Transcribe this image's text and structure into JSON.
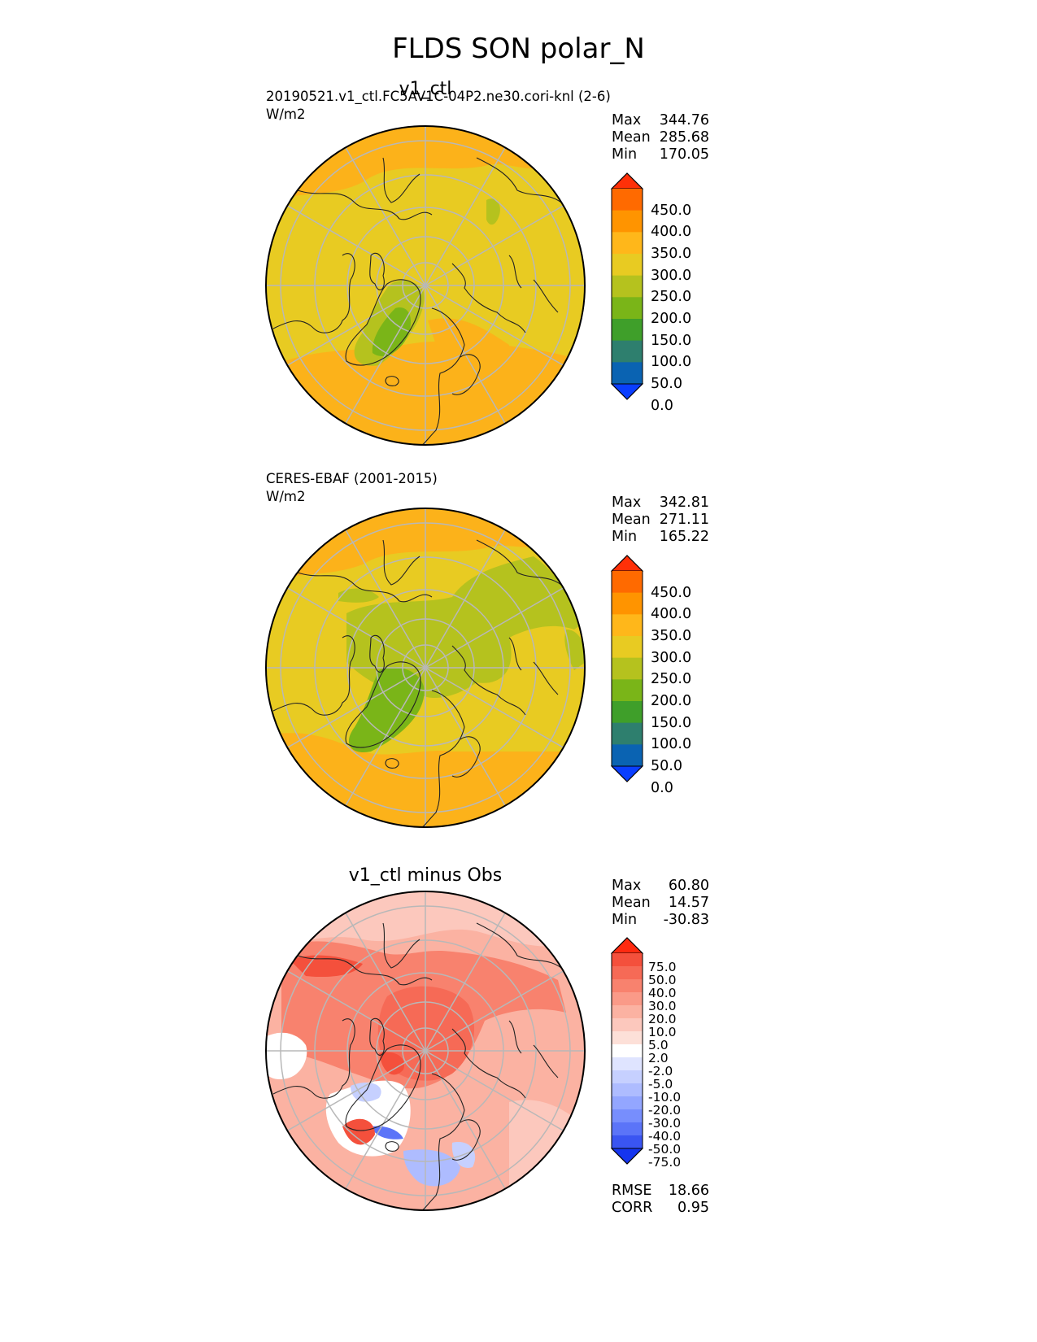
{
  "figure_title": "FLDS SON polar_N",
  "panels": [
    {
      "title": "v1_ctl",
      "label": "20190521.v1_ctl.FC5AV1C-04P2.ne30.cori-knl (2-6)",
      "units": "W/m2",
      "stats": {
        "keys": [
          "Max",
          "Mean",
          "Min"
        ],
        "values": [
          "344.76",
          "285.68",
          "170.05"
        ]
      },
      "colorbar": {
        "ticks": [
          "450.0",
          "400.0",
          "350.0",
          "300.0",
          "250.0",
          "200.0",
          "150.0",
          "100.0",
          "50.0",
          "0.0"
        ],
        "colors": [
          "#ff3008",
          "#ff6a00",
          "#ff9400",
          "#ffb71a",
          "#e8cb22",
          "#b5c21e",
          "#7ab518",
          "#3f9f2a",
          "#2e7f6e",
          "#0a63b2",
          "#0a3eff"
        ]
      }
    },
    {
      "title": "",
      "label": "CERES-EBAF (2001-2015)",
      "units": "W/m2",
      "stats": {
        "keys": [
          "Max",
          "Mean",
          "Min"
        ],
        "values": [
          "342.81",
          "271.11",
          "165.22"
        ]
      },
      "colorbar": {
        "ticks": [
          "450.0",
          "400.0",
          "350.0",
          "300.0",
          "250.0",
          "200.0",
          "150.0",
          "100.0",
          "50.0",
          "0.0"
        ],
        "colors": [
          "#ff3008",
          "#ff6a00",
          "#ff9400",
          "#ffb71a",
          "#e8cb22",
          "#b5c21e",
          "#7ab518",
          "#3f9f2a",
          "#2e7f6e",
          "#0a63b2",
          "#0a3eff"
        ]
      }
    },
    {
      "title": "v1_ctl minus Obs",
      "label": "",
      "units": "",
      "stats": {
        "keys": [
          "Max",
          "Mean",
          "Min"
        ],
        "values": [
          "60.80",
          "14.57",
          "-30.83"
        ]
      },
      "metrics": {
        "keys": [
          "RMSE",
          "CORR"
        ],
        "values": [
          "18.66",
          "0.95"
        ]
      },
      "colorbar": {
        "ticks": [
          "75.0",
          "50.0",
          "40.0",
          "30.0",
          "20.0",
          "10.0",
          "5.0",
          "2.0",
          "-2.0",
          "-5.0",
          "-10.0",
          "-20.0",
          "-30.0",
          "-40.0",
          "-50.0",
          "-75.0"
        ],
        "colors": [
          "#ff2a10",
          "#f4503c",
          "#f66a56",
          "#f8826e",
          "#fa9a88",
          "#fbb2a2",
          "#fcc8bd",
          "#fde0d8",
          "#ffffff",
          "#dfe4ff",
          "#c6d0ff",
          "#aebcff",
          "#93a6ff",
          "#778efd",
          "#5b74f8",
          "#3a55f2",
          "#1535ef"
        ]
      }
    }
  ],
  "map": {
    "projection": "north polar stereographic",
    "colors": {
      "orange": "#fcb21a",
      "yellow": "#e8cb22",
      "olive": "#b5c21e",
      "green": "#7ab518",
      "grid": "#b8b8b8",
      "coast": "#222222"
    }
  }
}
